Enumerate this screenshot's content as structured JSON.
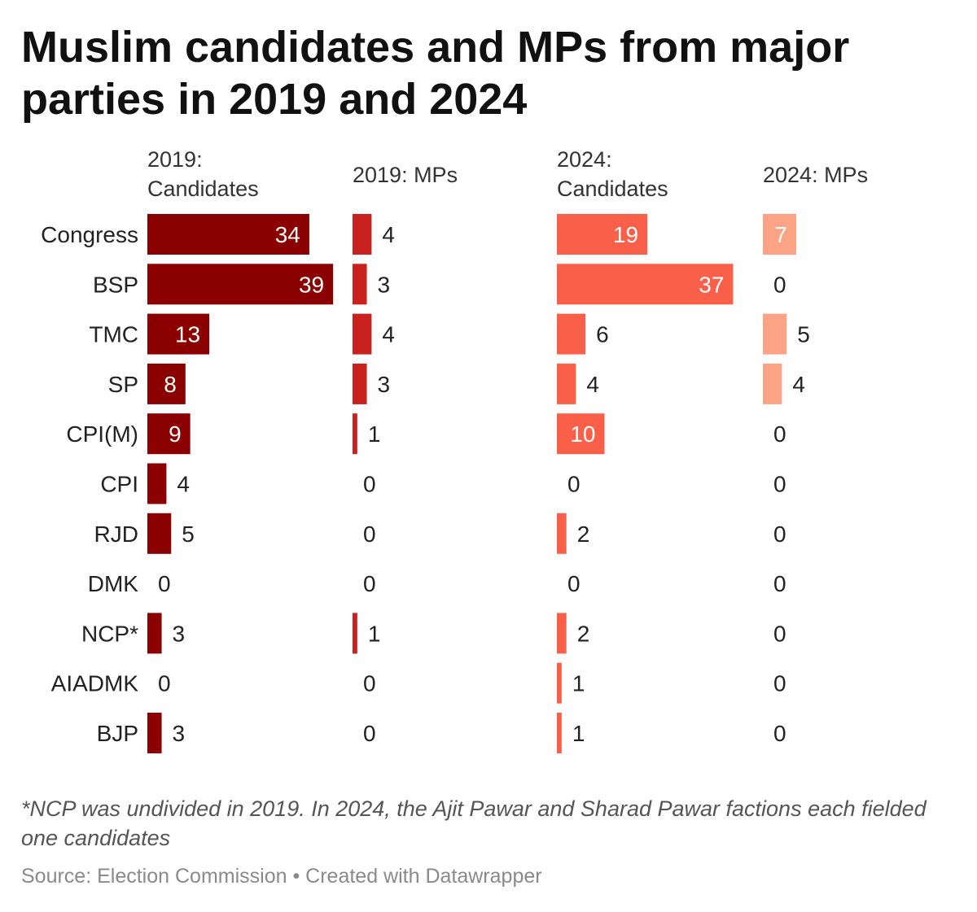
{
  "title": "Muslim candidates and MPs from major parties in 2019 and 2024",
  "chart_data": {
    "type": "bar",
    "categories": [
      "Congress",
      "BSP",
      "TMC",
      "SP",
      "CPI(M)",
      "CPI",
      "RJD",
      "DMK",
      "NCP*",
      "AIADMK",
      "BJP"
    ],
    "series": [
      {
        "name": "2019: Candidates",
        "color": "#8b0000",
        "values": [
          34,
          39,
          13,
          8,
          9,
          4,
          5,
          0,
          3,
          0,
          3
        ]
      },
      {
        "name": "2019: MPs",
        "color": "#c8211e",
        "values": [
          4,
          3,
          4,
          3,
          1,
          0,
          0,
          0,
          1,
          0,
          0
        ]
      },
      {
        "name": "2024: Candidates",
        "color": "#fa6049",
        "values": [
          19,
          37,
          6,
          4,
          10,
          0,
          2,
          0,
          2,
          1,
          1
        ]
      },
      {
        "name": "2024: MPs",
        "color": "#fca385",
        "values": [
          7,
          0,
          5,
          4,
          0,
          0,
          0,
          0,
          0,
          0,
          0
        ]
      }
    ]
  },
  "note": "*NCP was undivided in 2019. In 2024, the Ajit Pawar and Sharad Pawar factions each fielded one candidates",
  "source": "Source: Election Commission • Created with Datawrapper"
}
